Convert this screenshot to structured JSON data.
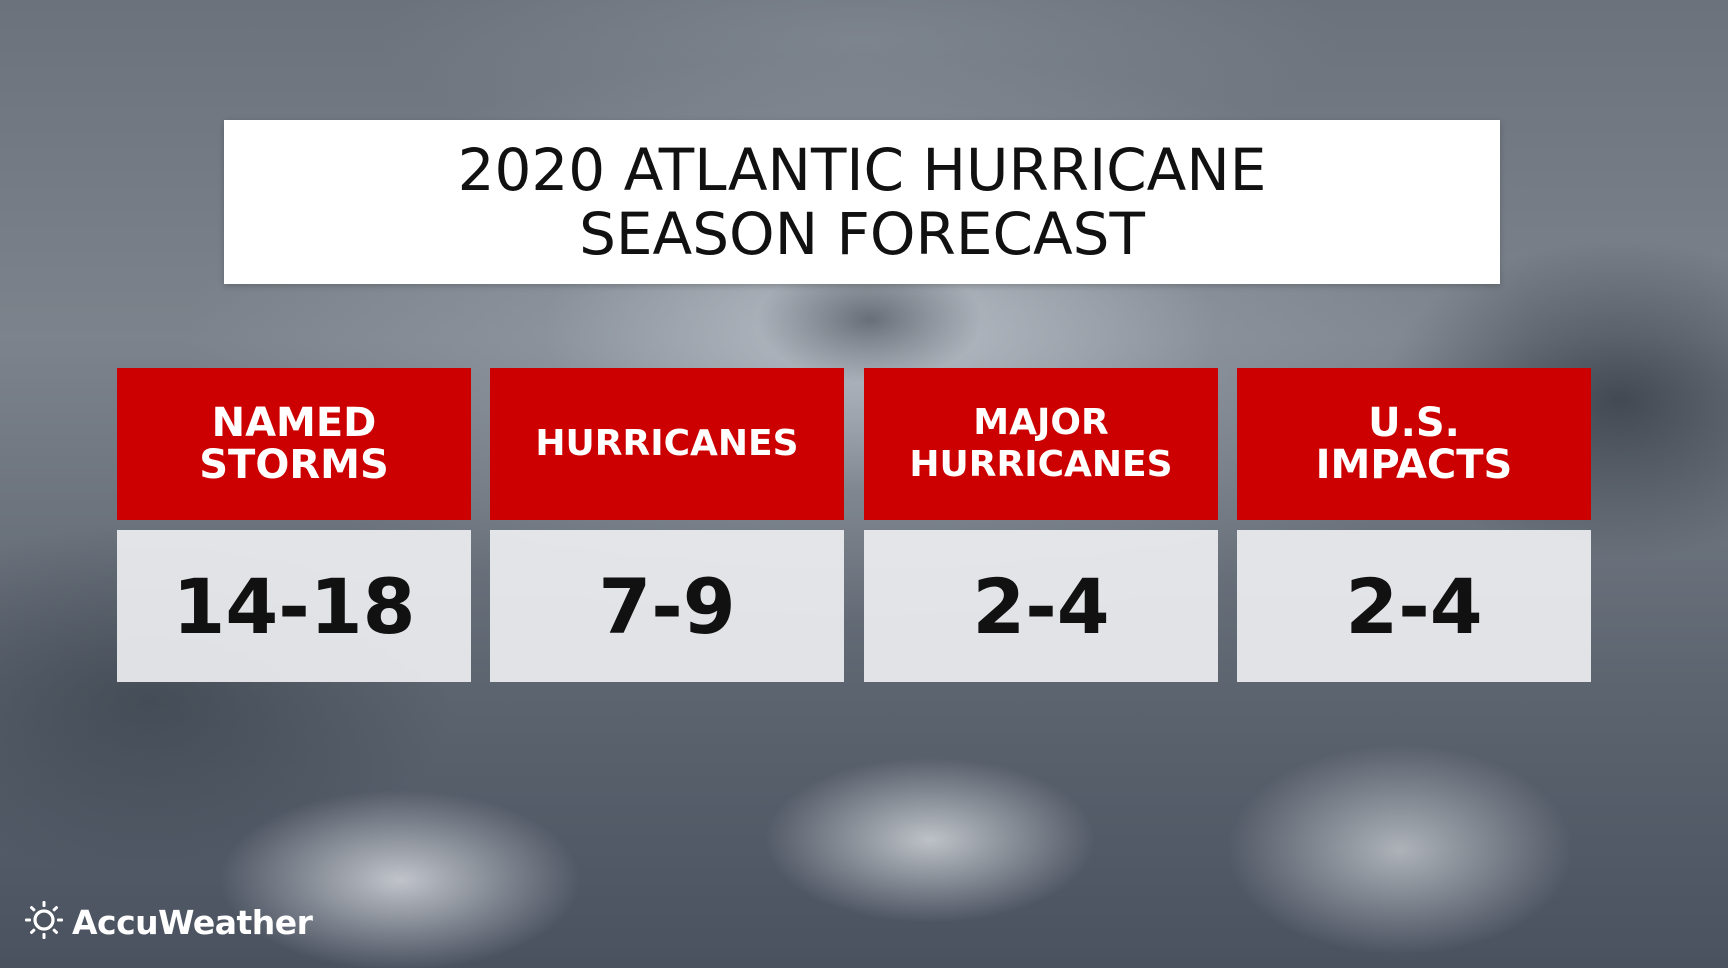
{
  "title": {
    "line1": "2020 ATLANTIC HURRICANE",
    "line2": "SEASON FORECAST"
  },
  "stats": [
    {
      "label": "NAMED\nSTORMS",
      "value": "14-18"
    },
    {
      "label": "HURRICANES",
      "value": "7-9"
    },
    {
      "label": "MAJOR\nHURRICANES",
      "value": "2-4"
    },
    {
      "label": "U.S.\nIMPACTS",
      "value": "2-4"
    }
  ],
  "colors": {
    "header_red": "#cc0001",
    "title_bg": "#ffffff",
    "value_bg": "#f0f1f3"
  },
  "brand": {
    "name": "AccuWeather",
    "icon": "sun-icon"
  }
}
